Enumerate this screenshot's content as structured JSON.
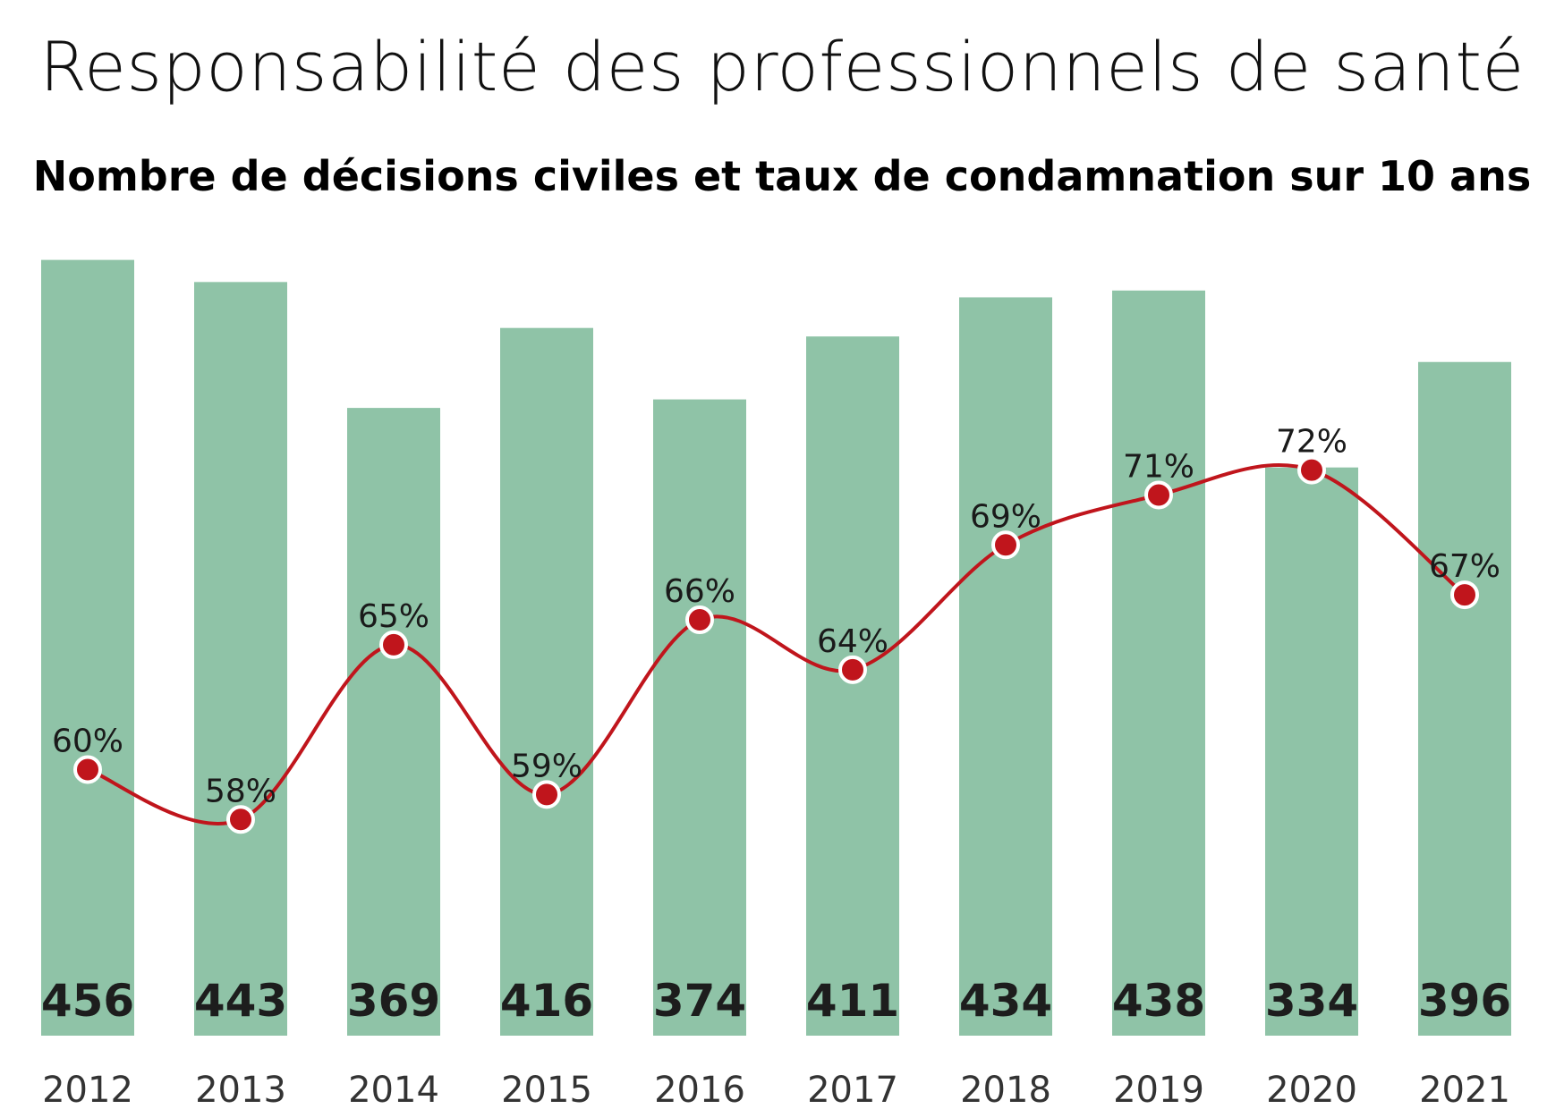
{
  "chart_data": {
    "type": "bar+line",
    "title": "Responsabilité des professionnels de santé",
    "subtitle": "Nombre de décisions civiles et taux de condamnation sur 10 ans",
    "categories": [
      "2012",
      "2013",
      "2014",
      "2015",
      "2016",
      "2017",
      "2018",
      "2019",
      "2020",
      "2021"
    ],
    "series": [
      {
        "name": "Nombre de décisions civiles",
        "type": "bar",
        "values": [
          456,
          443,
          369,
          416,
          374,
          411,
          434,
          438,
          334,
          396
        ],
        "color": "#8fc3a7",
        "ylim": [
          0,
          460
        ]
      },
      {
        "name": "Taux de condamnation",
        "type": "line",
        "values": [
          60,
          58,
          65,
          59,
          66,
          64,
          69,
          71,
          72,
          67
        ],
        "labels": [
          "60%",
          "58%",
          "65%",
          "59%",
          "66%",
          "64%",
          "69%",
          "71%",
          "72%",
          "67%"
        ],
        "color": "#c0151c",
        "ylim": [
          55,
          76.5
        ]
      }
    ],
    "legend": "none",
    "grid": false
  }
}
